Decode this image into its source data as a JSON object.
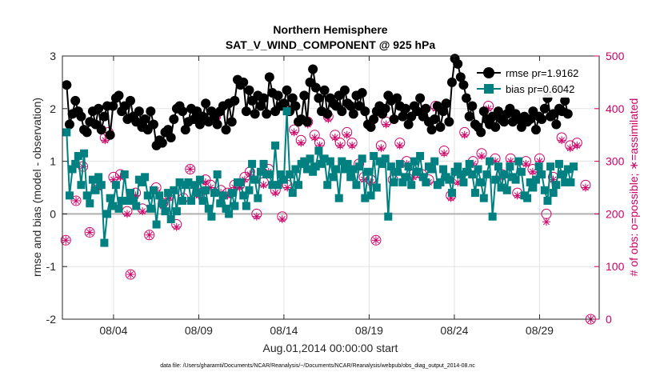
{
  "chart_data": {
    "type": "line",
    "title": "Northern Hemisphere",
    "subtitle": "SAT_V_WIND_COMPONENT @ 925 hPa",
    "xlabel": "Aug.01,2014 00:00:00 start",
    "ylabel": "rmse and bias (model - observation)",
    "y2label": "# of obs: o=possible; ∗=assimilated",
    "footnote": "data file: /Users/gharamti/Documents/NCAR/Reanalysis/~/Documents/NCAR/Reanalysis/webpub/obs_diag_output_2014-08.nc",
    "x_ticks": [
      3.5,
      8.5,
      13.5,
      18.5,
      23.5,
      28.5
    ],
    "x_tick_labels": [
      "08/04",
      "08/09",
      "08/14",
      "08/19",
      "08/24",
      "08/29"
    ],
    "xlim": [
      0.5,
      32.0
    ],
    "ylim": [
      -2,
      3
    ],
    "y_ticks": [
      -2,
      -1,
      0,
      1,
      2,
      3
    ],
    "y2lim": [
      0,
      500
    ],
    "y2_ticks": [
      0,
      100,
      200,
      300,
      400,
      500
    ],
    "grid": true,
    "legend_position": "top-right",
    "colors": {
      "rmse": "#000000",
      "bias": "#008080",
      "obs": "#cc0066",
      "zero_line": "#b0b0b0"
    },
    "series": [
      {
        "name": "rmse pr=1.9162",
        "axis": "left",
        "marker": "circle",
        "values": [
          2.45,
          1.7,
          1.9,
          2.15,
          1.95,
          1.85,
          1.6,
          1.55,
          1.75,
          1.95,
          1.7,
          2.0,
          1.6,
          1.85,
          2.05,
          1.5,
          2.05,
          2.2,
          2.25,
          1.95,
          2.05,
          1.8,
          2.15,
          1.85,
          1.75,
          1.95,
          1.65,
          1.8,
          1.6,
          1.95,
          1.7,
          1.3,
          1.4,
          1.35,
          1.55,
          1.6,
          1.45,
          1.8,
          2.0,
          2.05,
          1.95,
          1.6,
          1.75,
          2.0,
          1.8,
          1.95,
          1.7,
          1.85,
          2.1,
          1.75,
          1.95,
          1.85,
          1.7,
          1.95,
          2.05,
          1.6,
          2.1,
          1.75,
          2.15,
          2.55,
          2.45,
          2.5,
          1.95,
          2.35,
          2.15,
          1.9,
          2.25,
          2.05,
          2.2,
          1.9,
          2.6,
          2.3,
          1.95,
          2.25,
          2.05,
          2.1,
          2.35,
          1.95,
          2.2,
          2.05,
          1.75,
          1.8,
          2.25,
          1.75,
          2.5,
          2.75,
          2.4,
          2.2,
          1.95,
          2.35,
          1.9,
          2.2,
          2.1,
          2.05,
          2.25,
          1.95,
          2.35,
          2.1,
          2.05,
          1.9,
          2.25,
          2.05,
          2.3,
          1.95,
          1.7,
          1.65,
          1.8,
          1.95,
          2.05,
          1.9,
          2.0,
          2.25,
          2.15,
          1.8,
          2.2,
          2.05,
          1.85,
          2.0,
          1.7,
          1.85,
          2.05,
          1.95,
          2.2,
          1.85,
          2.0,
          1.75,
          1.6,
          1.8,
          2.05,
          1.65,
          1.95,
          2.1,
          1.75,
          2.5,
          2.95,
          2.85,
          2.6,
          2.45,
          2.2,
          1.85,
          2.05,
          1.7,
          1.65,
          1.55,
          1.95,
          1.8,
          1.7,
          1.85,
          1.65,
          1.95,
          1.8,
          1.75,
          1.9,
          2.0,
          1.75,
          1.9,
          1.8,
          1.65,
          1.85,
          1.75,
          1.8,
          1.95,
          1.6,
          1.85,
          1.8,
          2.0,
          2.2,
          1.85,
          1.9,
          1.7,
          2.0,
          1.95,
          2.15,
          1.9
        ]
      },
      {
        "name": "bias pr=0.6042",
        "axis": "left",
        "marker": "square",
        "values": [
          1.55,
          0.35,
          0.85,
          0.95,
          1.1,
          0.55,
          1.15,
          0.35,
          0.2,
          0.65,
          0.45,
          0.7,
          0.55,
          -0.55,
          0.0,
          0.3,
          0.15,
          0.55,
          0.1,
          0.25,
          0.75,
          0.25,
          0.4,
          0.25,
          0.15,
          0.65,
          0.6,
          0.7,
          0.35,
          0.1,
          0.45,
          -0.2,
          0.35,
          0.2,
          0.05,
          0.4,
          -0.1,
          0.45,
          0.05,
          0.6,
          0.25,
          0.55,
          0.6,
          0.25,
          0.55,
          0.4,
          0.65,
          0.25,
          0.45,
          0.1,
          -0.05,
          0.4,
          0.75,
          0.2,
          0.35,
          0.1,
          0.0,
          0.4,
          0.15,
          0.6,
          0.6,
          0.35,
          0.15,
          0.45,
          0.95,
          0.65,
          0.3,
          0.8,
          0.95,
          0.75,
          0.75,
          0.55,
          1.3,
          0.55,
          0.75,
          0.65,
          1.95,
          0.75,
          0.4,
          0.85,
          0.55,
          0.95,
          1.0,
          0.85,
          1.05,
          0.8,
          0.9,
          1.2,
          0.95,
          1.05,
          0.55,
          1.0,
          0.7,
          0.85,
          0.3,
          1.0,
          0.85,
          0.95,
          0.7,
          0.85,
          0.55,
          0.9,
          1.05,
          0.3,
          0.8,
          0.35,
          1.1,
          0.5,
          1.0,
          0.95,
          1.05,
          -0.05,
          0.9,
          0.6,
          0.8,
          0.95,
          0.6,
          0.7,
          0.9,
          0.55,
          1.0,
          0.8,
          1.1,
          0.7,
          0.6,
          0.9,
          0.85,
          1.0,
          0.55,
          0.6,
          0.85,
          0.7,
          0.65,
          0.4,
          0.8,
          0.9,
          0.75,
          0.6,
          0.8,
          0.95,
          0.75,
          0.4,
          0.85,
          0.6,
          0.3,
          0.75,
          1.0,
          -0.05,
          0.65,
          0.9,
          0.5,
          0.75,
          0.45,
          0.9,
          0.7,
          0.65,
          1.0,
          0.8,
          0.35,
          0.3,
          0.6,
          0.5,
          0.65,
          0.9,
          0.75,
          0.45,
          0.25,
          0.9,
          0.4,
          0.55,
          0.95,
          0.75,
          0.6,
          0.85,
          0.6,
          0.9
        ]
      },
      {
        "name": "possible",
        "axis": "right",
        "marker": "circle-open",
        "points": [
          [
            0.7,
            150
          ],
          [
            1.3,
            225
          ],
          [
            1.7,
            290
          ],
          [
            2.1,
            165
          ],
          [
            2.6,
            255
          ],
          [
            3.0,
            345
          ],
          [
            3.2,
            355
          ],
          [
            3.5,
            270
          ],
          [
            3.9,
            275
          ],
          [
            4.3,
            205
          ],
          [
            4.5,
            85
          ],
          [
            4.8,
            240
          ],
          [
            5.2,
            210
          ],
          [
            5.6,
            160
          ],
          [
            6.0,
            250
          ],
          [
            6.4,
            220
          ],
          [
            6.8,
            235
          ],
          [
            7.2,
            180
          ],
          [
            7.6,
            230
          ],
          [
            8.0,
            285
          ],
          [
            8.5,
            240
          ],
          [
            8.9,
            265
          ],
          [
            9.2,
            255
          ],
          [
            9.5,
            385
          ],
          [
            9.8,
            245
          ],
          [
            10.2,
            240
          ],
          [
            10.6,
            255
          ],
          [
            10.9,
            255
          ],
          [
            11.2,
            270
          ],
          [
            11.5,
            280
          ],
          [
            11.9,
            200
          ],
          [
            12.3,
            260
          ],
          [
            12.6,
            285
          ],
          [
            13.0,
            245
          ],
          [
            13.4,
            195
          ],
          [
            13.7,
            255
          ],
          [
            14.1,
            360
          ],
          [
            14.5,
            340
          ],
          [
            14.9,
            375
          ],
          [
            15.3,
            350
          ],
          [
            15.6,
            335
          ],
          [
            16.1,
            385
          ],
          [
            16.5,
            350
          ],
          [
            16.8,
            335
          ],
          [
            17.2,
            355
          ],
          [
            17.5,
            335
          ],
          [
            17.9,
            295
          ],
          [
            18.2,
            270
          ],
          [
            18.6,
            265
          ],
          [
            18.9,
            150
          ],
          [
            19.2,
            330
          ],
          [
            19.5,
            375
          ],
          [
            19.9,
            265
          ],
          [
            20.3,
            335
          ],
          [
            20.7,
            300
          ],
          [
            21.1,
            275
          ],
          [
            21.6,
            275
          ],
          [
            22.0,
            265
          ],
          [
            22.4,
            405
          ],
          [
            22.9,
            320
          ],
          [
            23.3,
            235
          ],
          [
            23.7,
            265
          ],
          [
            24.1,
            355
          ],
          [
            24.6,
            300
          ],
          [
            25.1,
            315
          ],
          [
            25.5,
            405
          ],
          [
            25.9,
            305
          ],
          [
            26.3,
            275
          ],
          [
            26.8,
            305
          ],
          [
            27.2,
            240
          ],
          [
            27.7,
            300
          ],
          [
            28.1,
            285
          ],
          [
            28.5,
            305
          ],
          [
            28.9,
            200
          ],
          [
            29.3,
            270
          ],
          [
            29.8,
            345
          ],
          [
            30.3,
            330
          ],
          [
            30.7,
            335
          ],
          [
            31.2,
            255
          ],
          [
            31.5,
            0
          ]
        ]
      },
      {
        "name": "assimilated",
        "axis": "right",
        "marker": "asterisk",
        "points": [
          [
            0.7,
            150
          ],
          [
            1.3,
            225
          ],
          [
            1.7,
            290
          ],
          [
            2.1,
            165
          ],
          [
            2.6,
            250
          ],
          [
            3.0,
            340
          ],
          [
            3.2,
            350
          ],
          [
            3.5,
            265
          ],
          [
            3.9,
            270
          ],
          [
            4.3,
            200
          ],
          [
            4.5,
            85
          ],
          [
            4.8,
            235
          ],
          [
            5.2,
            205
          ],
          [
            5.6,
            160
          ],
          [
            6.0,
            245
          ],
          [
            6.4,
            215
          ],
          [
            6.8,
            230
          ],
          [
            7.2,
            175
          ],
          [
            7.6,
            225
          ],
          [
            8.0,
            285
          ],
          [
            8.5,
            235
          ],
          [
            8.9,
            260
          ],
          [
            9.2,
            250
          ],
          [
            9.5,
            385
          ],
          [
            9.8,
            240
          ],
          [
            10.2,
            235
          ],
          [
            10.6,
            250
          ],
          [
            10.9,
            250
          ],
          [
            11.2,
            265
          ],
          [
            11.5,
            275
          ],
          [
            11.9,
            195
          ],
          [
            12.3,
            255
          ],
          [
            12.6,
            280
          ],
          [
            13.0,
            240
          ],
          [
            13.4,
            190
          ],
          [
            13.7,
            250
          ],
          [
            14.1,
            355
          ],
          [
            14.5,
            335
          ],
          [
            14.9,
            370
          ],
          [
            15.3,
            345
          ],
          [
            15.6,
            330
          ],
          [
            16.1,
            380
          ],
          [
            16.5,
            345
          ],
          [
            16.8,
            330
          ],
          [
            17.2,
            350
          ],
          [
            17.5,
            330
          ],
          [
            17.9,
            290
          ],
          [
            18.2,
            265
          ],
          [
            18.6,
            260
          ],
          [
            18.9,
            150
          ],
          [
            19.2,
            325
          ],
          [
            19.5,
            370
          ],
          [
            19.9,
            260
          ],
          [
            20.3,
            330
          ],
          [
            20.7,
            295
          ],
          [
            21.1,
            270
          ],
          [
            21.6,
            270
          ],
          [
            22.0,
            260
          ],
          [
            22.4,
            400
          ],
          [
            22.9,
            315
          ],
          [
            23.3,
            230
          ],
          [
            23.7,
            260
          ],
          [
            24.1,
            350
          ],
          [
            24.6,
            295
          ],
          [
            25.1,
            310
          ],
          [
            25.5,
            400
          ],
          [
            25.9,
            300
          ],
          [
            26.3,
            270
          ],
          [
            26.8,
            300
          ],
          [
            27.2,
            235
          ],
          [
            27.7,
            295
          ],
          [
            28.1,
            280
          ],
          [
            28.5,
            300
          ],
          [
            28.9,
            185
          ],
          [
            29.3,
            265
          ],
          [
            29.8,
            340
          ],
          [
            30.3,
            325
          ],
          [
            30.7,
            330
          ],
          [
            31.2,
            250
          ],
          [
            31.5,
            0
          ]
        ]
      }
    ]
  }
}
